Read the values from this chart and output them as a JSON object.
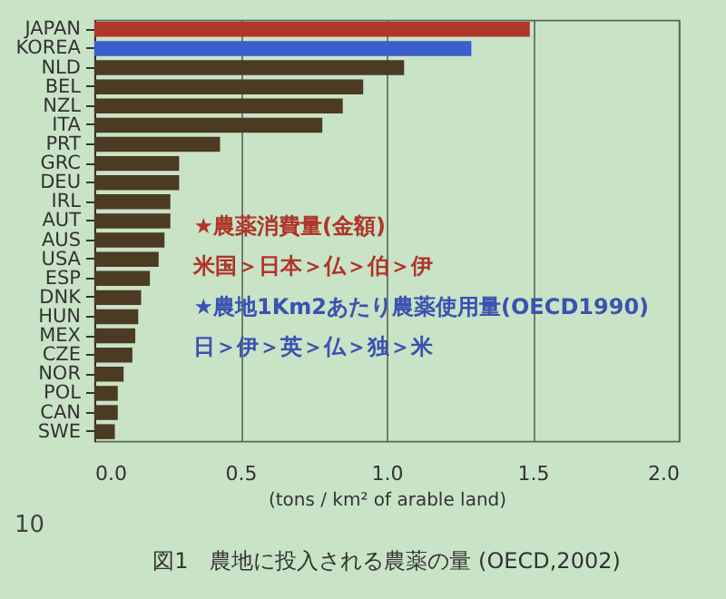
{
  "chart_data": {
    "type": "bar",
    "orientation": "horizontal",
    "title": "図1　農地に投入される農薬の量 (OECD,2002)",
    "xlabel": "(tons / km² of arable land)",
    "categories": [
      "JAPAN",
      "KOREA",
      "NLD",
      "BEL",
      "NZL",
      "ITA",
      "PRT",
      "GRC",
      "DEU",
      "IRL",
      "AUT",
      "AUS",
      "USA",
      "ESP",
      "DNK",
      "HUN",
      "MEX",
      "CZE",
      "NOR",
      "POL",
      "CAN",
      "SWE"
    ],
    "values": [
      1.49,
      1.29,
      1.06,
      0.92,
      0.85,
      0.78,
      0.43,
      0.29,
      0.29,
      0.26,
      0.26,
      0.24,
      0.22,
      0.19,
      0.16,
      0.15,
      0.14,
      0.13,
      0.1,
      0.08,
      0.08,
      0.07
    ],
    "colors": [
      "#b0352a",
      "#3a5fcd",
      "#4a3b22",
      "#4a3b22",
      "#4a3b22",
      "#4a3b22",
      "#4a3b22",
      "#4a3b22",
      "#4a3b22",
      "#4a3b22",
      "#4a3b22",
      "#4a3b22",
      "#4a3b22",
      "#4a3b22",
      "#4a3b22",
      "#4a3b22",
      "#4a3b22",
      "#4a3b22",
      "#4a3b22",
      "#4a3b22",
      "#4a3b22",
      "#4a3b22"
    ],
    "xlim": [
      0,
      2
    ],
    "xticks": [
      {
        "value": 0,
        "label": "0.0"
      },
      0.5,
      {
        "value": 1,
        "label": "1.0"
      },
      1.5,
      {
        "value": 2,
        "label": "2.0"
      }
    ],
    "grid": "x",
    "annotations": [
      "★農薬消費量(金額)",
      "米国＞日本＞仏＞伯＞伊",
      "★農地1Km2あたり農薬使用量(OECD1990)",
      "日＞伊＞英＞仏＞独＞米",
      "10"
    ]
  }
}
